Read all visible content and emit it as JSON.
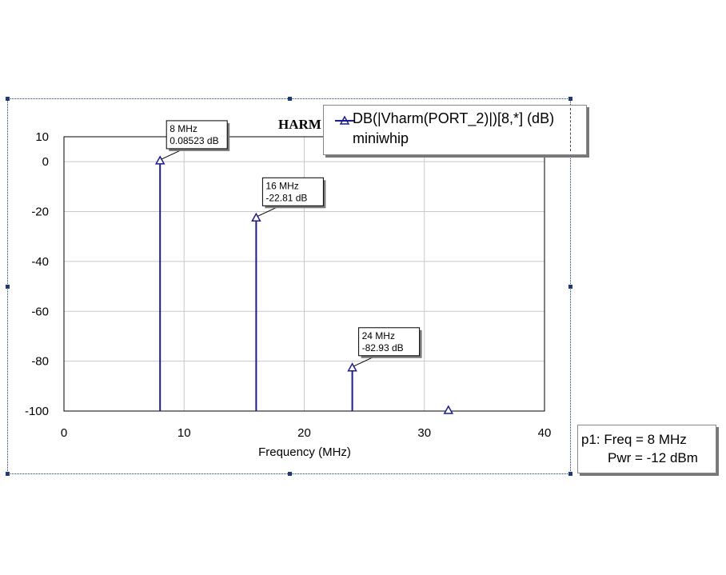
{
  "chart_data": {
    "type": "bar",
    "title": "HARM",
    "xlabel": "Frequency (MHz)",
    "ylabel": "",
    "xlim": [
      0,
      40
    ],
    "ylim": [
      -100,
      10
    ],
    "xticks": [
      0,
      10,
      20,
      30,
      40
    ],
    "yticks": [
      10,
      0,
      -20,
      -40,
      -60,
      -80,
      -100
    ],
    "grid": true,
    "series": [
      {
        "name": "DB(|Vharm(PORT_2)|)[8,*] (dB)",
        "color": "#1c1c8c",
        "marker": "triangle",
        "points": [
          {
            "x": 8,
            "y": 0.08523
          },
          {
            "x": 16,
            "y": -22.81
          },
          {
            "x": 24,
            "y": -82.93
          },
          {
            "x": 32,
            "y": -100
          }
        ]
      }
    ],
    "annotations": [
      {
        "x": 8,
        "y": 0.08523,
        "line1": "8 MHz",
        "line2": "0.08523 dB"
      },
      {
        "x": 16,
        "y": -22.81,
        "line1": "16 MHz",
        "line2": "-22.81 dB"
      },
      {
        "x": 24,
        "y": -82.93,
        "line1": "24 MHz",
        "line2": "-82.93 dB"
      }
    ]
  },
  "legend": {
    "series_label": "DB(|Vharm(PORT_2)|)[8,*] (dB)",
    "doc_name": "miniwhip"
  },
  "marker_readout": {
    "line1": "p1: Freq = 8 MHz",
    "line2": "Pwr = -12 dBm"
  },
  "colors": {
    "series": "#1c1c8c",
    "grid": "#c8c8c8",
    "frame": "#1f3a7a"
  }
}
